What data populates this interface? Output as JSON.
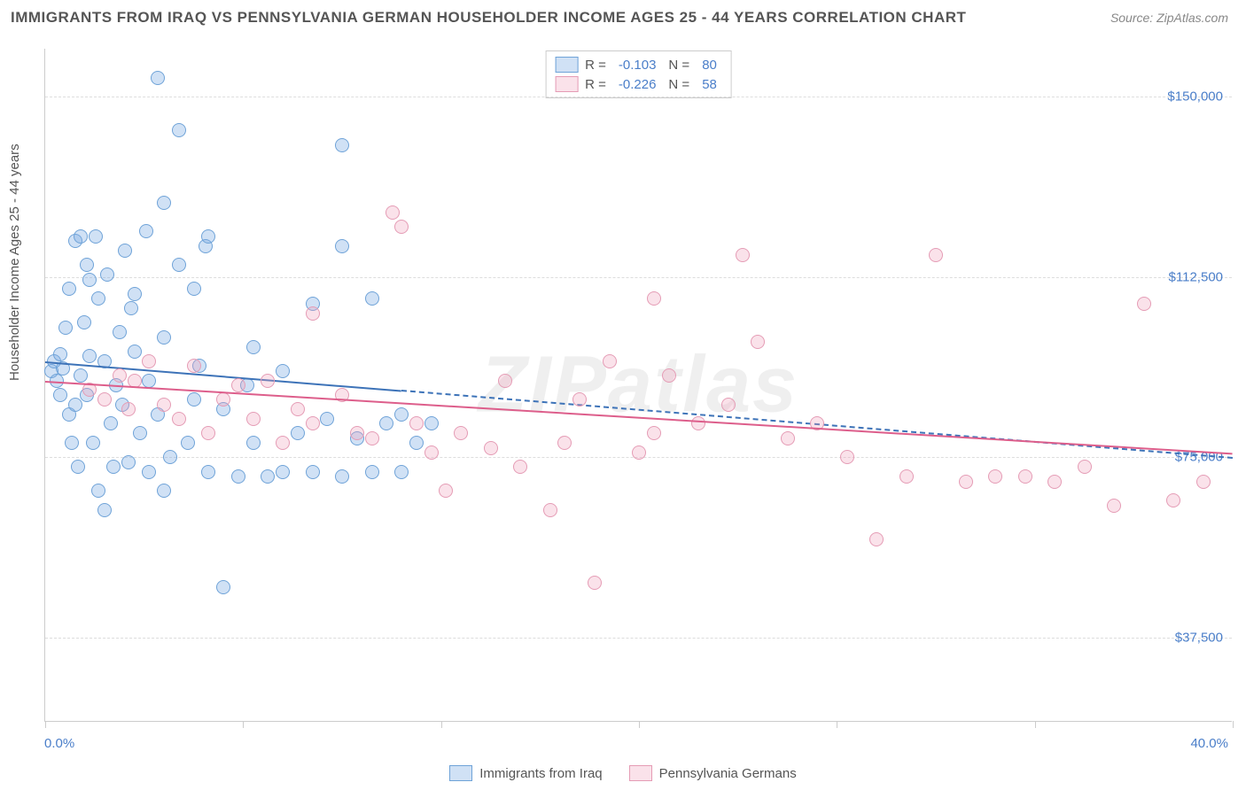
{
  "title": "IMMIGRANTS FROM IRAQ VS PENNSYLVANIA GERMAN HOUSEHOLDER INCOME AGES 25 - 44 YEARS CORRELATION CHART",
  "source": "Source: ZipAtlas.com",
  "watermark": "ZIPatlas",
  "chart": {
    "type": "scatter",
    "ylabel": "Householder Income Ages 25 - 44 years",
    "xlim": [
      0,
      40
    ],
    "ylim": [
      20000,
      160000
    ],
    "xtick_label_left": "0.0%",
    "xtick_label_right": "40.0%",
    "yticks": [
      {
        "v": 37500,
        "label": "$37,500"
      },
      {
        "v": 75000,
        "label": "$75,000"
      },
      {
        "v": 112500,
        "label": "$112,500"
      },
      {
        "v": 150000,
        "label": "$150,000"
      }
    ],
    "xticks_minor": [
      0,
      6.67,
      13.33,
      20,
      26.67,
      33.33,
      40
    ],
    "background_color": "#ffffff",
    "grid_color": "#dddddd",
    "axis_color": "#cccccc",
    "tick_label_color": "#4a7ec9",
    "label_color": "#555555",
    "title_color": "#555555",
    "title_fontsize": 17,
    "label_fontsize": 15,
    "marker_size": 16,
    "series": [
      {
        "name": "Immigrants from Iraq",
        "fill": "rgba(120,170,225,0.35)",
        "stroke": "#6fa3d8",
        "trend_color": "#3d73b8",
        "R": "-0.103",
        "N": "80",
        "trend": {
          "x1": 0,
          "y1": 95000,
          "x2": 40,
          "y2": 75000,
          "dashed_from_x": 12
        },
        "points": [
          [
            0.2,
            93000
          ],
          [
            0.3,
            95000
          ],
          [
            0.4,
            91000
          ],
          [
            0.5,
            96500
          ],
          [
            0.5,
            88000
          ],
          [
            0.6,
            93500
          ],
          [
            0.7,
            102000
          ],
          [
            0.8,
            84000
          ],
          [
            0.8,
            110000
          ],
          [
            0.9,
            78000
          ],
          [
            1.0,
            120000
          ],
          [
            1.0,
            86000
          ],
          [
            1.1,
            73000
          ],
          [
            1.2,
            92000
          ],
          [
            1.2,
            121000
          ],
          [
            1.3,
            103000
          ],
          [
            1.4,
            88000
          ],
          [
            1.5,
            96000
          ],
          [
            1.5,
            112000
          ],
          [
            1.6,
            78000
          ],
          [
            1.7,
            121000
          ],
          [
            1.8,
            68000
          ],
          [
            1.8,
            108000
          ],
          [
            2.0,
            64000
          ],
          [
            2.0,
            95000
          ],
          [
            2.1,
            113000
          ],
          [
            2.2,
            82000
          ],
          [
            2.3,
            73000
          ],
          [
            2.4,
            90000
          ],
          [
            2.5,
            101000
          ],
          [
            2.6,
            86000
          ],
          [
            2.7,
            118000
          ],
          [
            2.8,
            74000
          ],
          [
            3.0,
            97000
          ],
          [
            3.0,
            109000
          ],
          [
            3.2,
            80000
          ],
          [
            3.4,
            122000
          ],
          [
            3.5,
            72000
          ],
          [
            3.5,
            91000
          ],
          [
            3.8,
            84000
          ],
          [
            3.8,
            154000
          ],
          [
            4.0,
            68000
          ],
          [
            4.0,
            100000
          ],
          [
            4.0,
            128000
          ],
          [
            4.5,
            115000
          ],
          [
            4.5,
            143000
          ],
          [
            4.8,
            78000
          ],
          [
            5.0,
            87000
          ],
          [
            5.0,
            110000
          ],
          [
            5.2,
            94000
          ],
          [
            5.4,
            119000
          ],
          [
            5.5,
            72000
          ],
          [
            5.5,
            121000
          ],
          [
            6.0,
            48000
          ],
          [
            6.0,
            85000
          ],
          [
            6.5,
            71000
          ],
          [
            7.0,
            78000
          ],
          [
            7.0,
            98000
          ],
          [
            7.5,
            71000
          ],
          [
            8.0,
            93000
          ],
          [
            8.5,
            80000
          ],
          [
            9.0,
            72000
          ],
          [
            9.0,
            107000
          ],
          [
            9.5,
            83000
          ],
          [
            10.0,
            71000
          ],
          [
            10.0,
            119000
          ],
          [
            10.0,
            140000
          ],
          [
            10.5,
            79000
          ],
          [
            11.0,
            108000
          ],
          [
            11.0,
            72000
          ],
          [
            11.5,
            82000
          ],
          [
            12.0,
            72000
          ],
          [
            12.0,
            84000
          ],
          [
            12.5,
            78000
          ],
          [
            13.0,
            82000
          ],
          [
            8.0,
            72000
          ],
          [
            6.8,
            90000
          ],
          [
            4.2,
            75000
          ],
          [
            2.9,
            106000
          ],
          [
            1.4,
            115000
          ]
        ]
      },
      {
        "name": "Pennsylvania Germans",
        "fill": "rgba(240,160,185,0.3)",
        "stroke": "#e59cb5",
        "trend_color": "#dd5e8b",
        "R": "-0.226",
        "N": "58",
        "trend": {
          "x1": 0,
          "y1": 91000,
          "x2": 40,
          "y2": 76000,
          "dashed_from_x": 40
        },
        "points": [
          [
            1.5,
            89000
          ],
          [
            2.0,
            87000
          ],
          [
            2.5,
            92000
          ],
          [
            2.8,
            85000
          ],
          [
            3.0,
            91000
          ],
          [
            3.5,
            95000
          ],
          [
            4.0,
            86000
          ],
          [
            4.5,
            83000
          ],
          [
            5.0,
            94000
          ],
          [
            5.5,
            80000
          ],
          [
            6.0,
            87000
          ],
          [
            6.5,
            90000
          ],
          [
            7.0,
            83000
          ],
          [
            7.5,
            91000
          ],
          [
            8.0,
            78000
          ],
          [
            8.5,
            85000
          ],
          [
            9.0,
            82000
          ],
          [
            9.0,
            105000
          ],
          [
            10.0,
            88000
          ],
          [
            10.5,
            80000
          ],
          [
            11.0,
            79000
          ],
          [
            11.7,
            126000
          ],
          [
            12.0,
            123000
          ],
          [
            12.5,
            82000
          ],
          [
            13.0,
            76000
          ],
          [
            13.5,
            68000
          ],
          [
            14.0,
            80000
          ],
          [
            15.0,
            77000
          ],
          [
            15.5,
            91000
          ],
          [
            16.0,
            73000
          ],
          [
            17.0,
            64000
          ],
          [
            17.5,
            78000
          ],
          [
            18.0,
            87000
          ],
          [
            18.5,
            49000
          ],
          [
            19.0,
            95000
          ],
          [
            20.0,
            76000
          ],
          [
            20.5,
            108000
          ],
          [
            20.5,
            80000
          ],
          [
            21.0,
            92000
          ],
          [
            22.0,
            82000
          ],
          [
            23.0,
            86000
          ],
          [
            23.5,
            117000
          ],
          [
            24.0,
            99000
          ],
          [
            25.0,
            79000
          ],
          [
            26.0,
            82000
          ],
          [
            27.0,
            75000
          ],
          [
            28.0,
            58000
          ],
          [
            29.0,
            71000
          ],
          [
            30.0,
            117000
          ],
          [
            31.0,
            70000
          ],
          [
            32.0,
            71000
          ],
          [
            33.0,
            71000
          ],
          [
            34.0,
            70000
          ],
          [
            35.0,
            73000
          ],
          [
            36.0,
            65000
          ],
          [
            37.0,
            107000
          ],
          [
            38.0,
            66000
          ],
          [
            39.0,
            70000
          ]
        ]
      }
    ]
  },
  "legend_top": {
    "r_label": "R =",
    "n_label": "N ="
  },
  "legend_bottom": [
    "Immigrants from Iraq",
    "Pennsylvania Germans"
  ]
}
